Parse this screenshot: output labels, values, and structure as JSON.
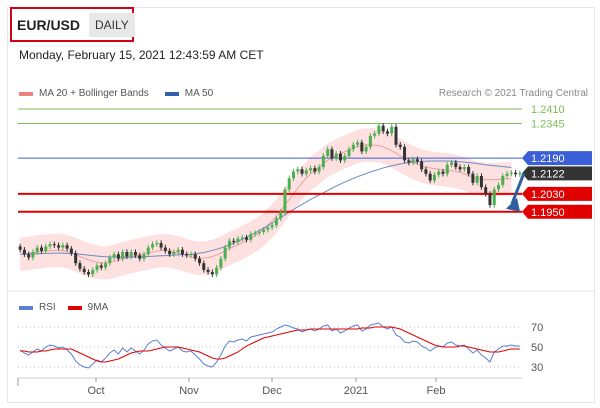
{
  "header": {
    "pair": "EUR/USD",
    "period": "DAILY",
    "timestamp": "Monday, February 15, 2021 12:43:59 AM CET"
  },
  "legend": {
    "items": [
      {
        "label": "MA 20 + Bollinger Bands",
        "color": "#f08080"
      },
      {
        "label": "MA 50",
        "color": "#2e5fa8"
      }
    ],
    "credit": "Research © 2021 Trading Central"
  },
  "rsi_legend": {
    "items": [
      {
        "label": "RSI",
        "color": "#5b7fd6"
      },
      {
        "label": "9MA",
        "color": "#e00000"
      }
    ]
  },
  "colors": {
    "green_level": "#7cbf5a",
    "blue_level": "#3a5fd9",
    "red_level": "#e00000",
    "current_price": "#333333",
    "forecast_arrow": "#2f5f9e",
    "candle_up": "#4caf50",
    "candle_down": "#333333",
    "bollinger_fill": "#fde0e0"
  },
  "chart_data": [
    {
      "type": "candlestick",
      "title": "EUR/USD",
      "x_labels": [
        "Oct",
        "Nov",
        "Dec",
        "2021",
        "Feb"
      ],
      "ylim": [
        1.16,
        1.245
      ],
      "levels": [
        {
          "value": 1.241,
          "label": "1.2410",
          "kind": "resistance",
          "color": "#7cbf5a"
        },
        {
          "value": 1.2345,
          "label": "1.2345",
          "kind": "resistance",
          "color": "#7cbf5a"
        },
        {
          "value": 1.219,
          "label": "1.2190",
          "kind": "pivot",
          "color": "#3a5fd9"
        },
        {
          "value": 1.2122,
          "label": "1.2122",
          "kind": "current",
          "color": "#333333"
        },
        {
          "value": 1.203,
          "label": "1.2030",
          "kind": "support",
          "color": "#e00000"
        },
        {
          "value": 1.195,
          "label": "1.1950",
          "kind": "support",
          "color": "#e00000"
        }
      ],
      "closes": [
        1.178,
        1.176,
        1.1745,
        1.177,
        1.179,
        1.1775,
        1.1795,
        1.1805,
        1.18,
        1.179,
        1.18,
        1.1785,
        1.1765,
        1.172,
        1.1695,
        1.168,
        1.167,
        1.169,
        1.171,
        1.17,
        1.172,
        1.1745,
        1.176,
        1.174,
        1.177,
        1.175,
        1.177,
        1.1755,
        1.174,
        1.176,
        1.179,
        1.1805,
        1.181,
        1.179,
        1.1775,
        1.176,
        1.177,
        1.178,
        1.176,
        1.1755,
        1.176,
        1.174,
        1.172,
        1.169,
        1.168,
        1.167,
        1.17,
        1.174,
        1.179,
        1.182,
        1.1815,
        1.183,
        1.1835,
        1.1825,
        1.185,
        1.1855,
        1.186,
        1.187,
        1.188,
        1.189,
        1.192,
        1.195,
        1.205,
        1.21,
        1.213,
        1.214,
        1.212,
        1.2135,
        1.2145,
        1.213,
        1.215,
        1.22,
        1.223,
        1.219,
        1.221,
        1.218,
        1.22,
        1.223,
        1.225,
        1.226,
        1.222,
        1.224,
        1.229,
        1.23,
        1.2335,
        1.231,
        1.23,
        1.233,
        1.225,
        1.224,
        1.218,
        1.217,
        1.2185,
        1.2175,
        1.214,
        1.212,
        1.209,
        1.2115,
        1.213,
        1.212,
        1.216,
        1.217,
        1.215,
        1.214,
        1.215,
        1.212,
        1.208,
        1.211,
        1.206,
        1.203,
        1.198,
        1.205,
        1.207,
        1.211,
        1.212,
        1.2125,
        1.2118,
        1.2122
      ],
      "ma20": [
        1.176,
        1.1762,
        1.1764,
        1.1767,
        1.177,
        1.1772,
        1.1774,
        1.1776,
        1.1777,
        1.1778,
        1.1776,
        1.1772,
        1.1766,
        1.1758,
        1.175,
        1.1742,
        1.1735,
        1.1729,
        1.1725,
        1.1722,
        1.1722,
        1.1724,
        1.1728,
        1.1734,
        1.174,
        1.1745,
        1.175,
        1.1754,
        1.1758,
        1.1762,
        1.1766,
        1.177,
        1.1774,
        1.1776,
        1.1776,
        1.1774,
        1.177,
        1.1766,
        1.176,
        1.1754,
        1.1748,
        1.1744,
        1.1742,
        1.1742,
        1.1745,
        1.175,
        1.1757,
        1.1765,
        1.1775,
        1.1785,
        1.1794,
        1.1803,
        1.1812,
        1.1822,
        1.1832,
        1.1843,
        1.1856,
        1.187,
        1.189,
        1.191,
        1.193,
        1.1955,
        1.198,
        1.2005,
        1.203,
        1.2055,
        1.208,
        1.21,
        1.212,
        1.2135,
        1.215,
        1.2165,
        1.218,
        1.219,
        1.22,
        1.221,
        1.2218,
        1.2226,
        1.2234,
        1.2242,
        1.2246,
        1.2248,
        1.2249,
        1.2248,
        1.2246,
        1.224,
        1.2232,
        1.2222,
        1.2212,
        1.22,
        1.219,
        1.218,
        1.217,
        1.2162,
        1.2155,
        1.215,
        1.2146,
        1.2143,
        1.214,
        1.2138,
        1.2136,
        1.2134,
        1.213,
        1.2126,
        1.212,
        1.2112,
        1.2105,
        1.21,
        1.2096,
        1.2094,
        1.2093,
        1.2094,
        1.2095,
        1.2096,
        1.2097,
        1.2098
      ],
      "ma50": [
        1.176,
        1.176,
        1.1761,
        1.1762,
        1.1762,
        1.1763,
        1.1764,
        1.1764,
        1.1765,
        1.1765,
        1.1765,
        1.1764,
        1.1763,
        1.1762,
        1.176,
        1.1758,
        1.1756,
        1.1754,
        1.1752,
        1.175,
        1.1749,
        1.1748,
        1.1747,
        1.1747,
        1.1747,
        1.1747,
        1.1747,
        1.1748,
        1.1748,
        1.1749,
        1.175,
        1.1751,
        1.1752,
        1.1753,
        1.1754,
        1.1755,
        1.1756,
        1.1757,
        1.1758,
        1.1759,
        1.176,
        1.1762,
        1.1765,
        1.1768,
        1.1772,
        1.1777,
        1.1782,
        1.1788,
        1.1795,
        1.1802,
        1.181,
        1.1818,
        1.1827,
        1.1836,
        1.1846,
        1.1856,
        1.1866,
        1.1877,
        1.1888,
        1.19,
        1.1912,
        1.1924,
        1.1936,
        1.1948,
        1.196,
        1.1972,
        1.1983,
        1.1994,
        1.2005,
        1.2015,
        1.2025,
        1.2035,
        1.2045,
        1.2055,
        1.2065,
        1.2074,
        1.2083,
        1.2091,
        1.2099,
        1.2107,
        1.2114,
        1.2121,
        1.2128,
        1.2134,
        1.214,
        1.2146,
        1.2151,
        1.2156,
        1.216,
        1.2164,
        1.2167,
        1.217,
        1.2172,
        1.2174,
        1.2175,
        1.2176,
        1.2177,
        1.2177,
        1.2177,
        1.2177,
        1.2177,
        1.2176,
        1.2175,
        1.2174,
        1.2172,
        1.217,
        1.2168,
        1.2166,
        1.2163,
        1.216,
        1.2158,
        1.2156,
        1.2154,
        1.2152,
        1.215,
        1.2148
      ],
      "forecast": {
        "from": 1.2122,
        "to": 1.195,
        "direction": "down"
      }
    },
    {
      "type": "line",
      "title": "RSI",
      "ylim": [
        25,
        75
      ],
      "y_ticks": [
        {
          "value": 70,
          "label": "70"
        },
        {
          "value": 50,
          "label": "50"
        },
        {
          "value": 30,
          "label": "30"
        }
      ],
      "series": [
        {
          "name": "RSI",
          "color": "#5b7fd6",
          "values": [
            47,
            44,
            42,
            45,
            48,
            46,
            50,
            52,
            51,
            49,
            50,
            47,
            43,
            36,
            32,
            30,
            29,
            33,
            37,
            35,
            39,
            44,
            47,
            43,
            49,
            45,
            49,
            46,
            43,
            47,
            53,
            56,
            57,
            52,
            49,
            46,
            48,
            50,
            46,
            45,
            46,
            42,
            38,
            33,
            31,
            30,
            35,
            42,
            51,
            56,
            55,
            57,
            58,
            56,
            60,
            61,
            62,
            63,
            64,
            65,
            68,
            70,
            72,
            71,
            69,
            68,
            65,
            67,
            68,
            66,
            68,
            71,
            72,
            66,
            68,
            64,
            66,
            69,
            71,
            72,
            66,
            68,
            72,
            73,
            74,
            70,
            68,
            70,
            62,
            60,
            55,
            54,
            56,
            55,
            51,
            49,
            46,
            49,
            51,
            50,
            54,
            55,
            52,
            51,
            52,
            48,
            44,
            47,
            42,
            39,
            35,
            45,
            48,
            51,
            51,
            52,
            51,
            51
          ]
        },
        {
          "name": "9MA",
          "color": "#e00000",
          "values": [
            46,
            46,
            45,
            45,
            45,
            46,
            46,
            47,
            48,
            48,
            48,
            48,
            48,
            46,
            44,
            42,
            40,
            38,
            36,
            35,
            35,
            36,
            37,
            38,
            40,
            42,
            44,
            45,
            46,
            46,
            46,
            47,
            48,
            49,
            50,
            50,
            50,
            50,
            49,
            48,
            47,
            46,
            45,
            43,
            41,
            39,
            38,
            38,
            39,
            41,
            43,
            45,
            48,
            51,
            53,
            55,
            57,
            59,
            60,
            61,
            62,
            63,
            64,
            65,
            66,
            67,
            67,
            67,
            68,
            68,
            68,
            68,
            68,
            68,
            68,
            68,
            68,
            68,
            68,
            68,
            69,
            69,
            69,
            70,
            70,
            70,
            70,
            70,
            69,
            68,
            66,
            64,
            62,
            60,
            58,
            56,
            54,
            52,
            51,
            50,
            50,
            50,
            50,
            51,
            51,
            50,
            49,
            48,
            47,
            46,
            45,
            45,
            45,
            46,
            47,
            48,
            48,
            48
          ]
        }
      ],
      "x_labels": [
        "Oct",
        "Nov",
        "Dec",
        "2021",
        "Feb"
      ]
    }
  ]
}
